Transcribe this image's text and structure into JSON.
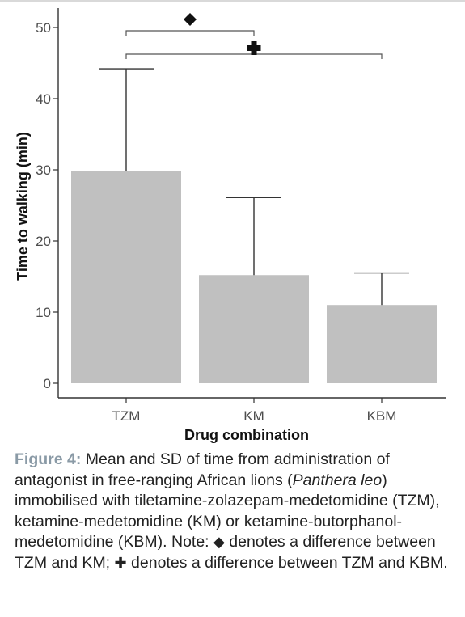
{
  "chart_data": {
    "type": "bar",
    "title": "",
    "xlabel": "Drug combination",
    "ylabel": "Time to walking (min)",
    "categories": [
      "TZM",
      "KM",
      "KBM"
    ],
    "values": [
      29.8,
      15.2,
      11.0
    ],
    "error_sd": [
      14.4,
      10.9,
      4.5
    ],
    "ylim": [
      0,
      50
    ],
    "yticks": [
      0,
      10,
      20,
      30,
      40,
      50
    ],
    "bar_color": "#c0c0c0",
    "grid": false,
    "significance": [
      {
        "from": "TZM",
        "to": "KM",
        "symbol": "◆",
        "name": "diamond"
      },
      {
        "from": "TZM",
        "to": "KBM",
        "symbol": "✚",
        "name": "cross"
      }
    ]
  },
  "caption": {
    "label": "Figure 4:",
    "text_1": " Mean and SD of time from administration of antagonist in free-ranging African lions (",
    "species": "Panthera leo",
    "text_2": ") immobilised with tiletamine-zolazepam-medetomidine (TZM), ketamine-medetomidine (KM) or ketamine-butorphanol-medetomidine (KBM). Note: ",
    "diamond_symbol": "◆",
    "text_3": " denotes a difference between TZM and KM; ",
    "cross_symbol": "✚",
    "text_4": " denotes a difference between TZM and KBM."
  },
  "colors": {
    "caption_label": "#8a9aa6",
    "axis": "#333333"
  }
}
